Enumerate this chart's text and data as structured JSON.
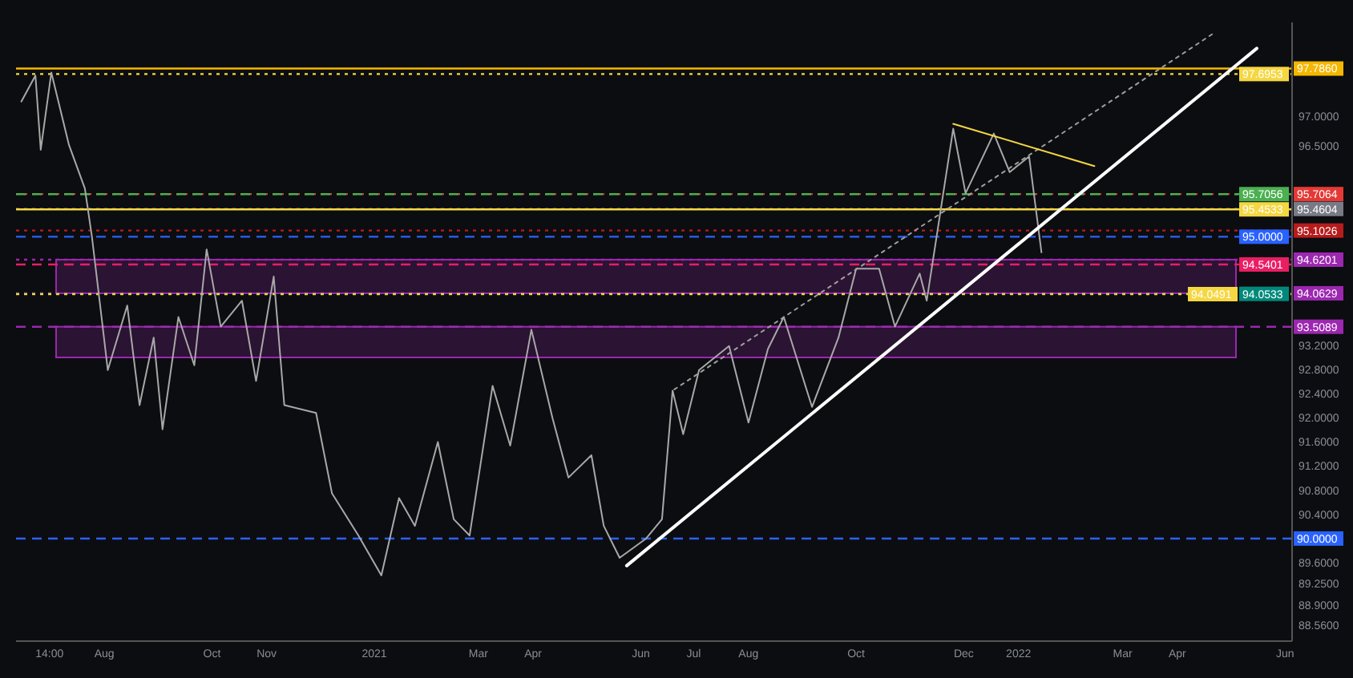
{
  "chart_data": {
    "type": "line",
    "xlim": [
      "2020-06-12",
      "2022-06-05"
    ],
    "xticks": [
      {
        "value": "2020-07-01",
        "label": "14:00"
      },
      {
        "value": "2020-08-01",
        "label": "Aug"
      },
      {
        "value": "2020-10-01",
        "label": "Oct"
      },
      {
        "value": "2020-11-01",
        "label": "Nov"
      },
      {
        "value": "2021-01-01",
        "label": "2021"
      },
      {
        "value": "2021-03-01",
        "label": "Mar"
      },
      {
        "value": "2021-04-01",
        "label": "Apr"
      },
      {
        "value": "2021-06-01",
        "label": "Jun"
      },
      {
        "value": "2021-07-01",
        "label": "Jul"
      },
      {
        "value": "2021-08-01",
        "label": "Aug"
      },
      {
        "value": "2021-10-01",
        "label": "Oct"
      },
      {
        "value": "2021-12-01",
        "label": "Dec"
      },
      {
        "value": "2022-01-01",
        "label": "2022"
      },
      {
        "value": "2022-03-01",
        "label": "Mar"
      },
      {
        "value": "2022-04-01",
        "label": "Apr"
      },
      {
        "value": "2022-06-01",
        "label": "Jun"
      }
    ],
    "ylim": [
      88.3,
      98.55
    ],
    "yticks": [
      {
        "value": 97,
        "label": "97.0000"
      },
      {
        "value": 96.5,
        "label": "96.5000"
      },
      {
        "value": 93.2,
        "label": "93.2000"
      },
      {
        "value": 92.8,
        "label": "92.8000"
      },
      {
        "value": 92.4,
        "label": "92.4000"
      },
      {
        "value": 92,
        "label": "92.0000"
      },
      {
        "value": 91.6,
        "label": "91.6000"
      },
      {
        "value": 91.2,
        "label": "91.2000"
      },
      {
        "value": 90.8,
        "label": "90.8000"
      },
      {
        "value": 90.4,
        "label": "90.4000"
      },
      {
        "value": 89.6,
        "label": "89.6000"
      },
      {
        "value": 89.25,
        "label": "89.2500"
      },
      {
        "value": 88.9,
        "label": "88.9000"
      },
      {
        "value": 88.56,
        "label": "88.5600"
      }
    ],
    "grid": false,
    "series": [
      {
        "color": "#a8a8a8",
        "line_style": "solid",
        "x": [
          "2020-06-15",
          "2020-06-23",
          "2020-06-26",
          "2020-07-02",
          "2020-07-12",
          "2020-07-21",
          "2020-07-25",
          "2020-07-30",
          "2020-08-03",
          "2020-08-14",
          "2020-08-21",
          "2020-08-29",
          "2020-09-03",
          "2020-09-12",
          "2020-09-21",
          "2020-09-28",
          "2020-10-06",
          "2020-10-18",
          "2020-10-26",
          "2020-11-05",
          "2020-11-11",
          "2020-11-29",
          "2020-12-08",
          "2020-12-23",
          "2021-01-05",
          "2021-01-15",
          "2021-01-24",
          "2021-02-06",
          "2021-02-15",
          "2021-02-24",
          "2021-03-09",
          "2021-03-19",
          "2021-03-31",
          "2021-04-12",
          "2021-04-21",
          "2021-05-04",
          "2021-05-11",
          "2021-05-20",
          "2021-06-04",
          "2021-06-13",
          "2021-06-19",
          "2021-06-25",
          "2021-07-04",
          "2021-07-21",
          "2021-08-01",
          "2021-08-12",
          "2021-08-21",
          "2021-09-06",
          "2021-09-21",
          "2021-10-01",
          "2021-10-14",
          "2021-10-23",
          "2021-11-06",
          "2021-11-10",
          "2021-11-18",
          "2021-11-25",
          "2021-12-02",
          "2021-12-18",
          "2021-12-27",
          "2022-01-07",
          "2022-01-14"
        ],
        "values": [
          97.24,
          97.67,
          96.44,
          97.72,
          96.52,
          95.8,
          95.0,
          93.78,
          92.79,
          93.86,
          92.21,
          93.33,
          91.81,
          93.67,
          92.87,
          94.79,
          93.51,
          93.94,
          92.61,
          94.34,
          92.21,
          92.08,
          90.75,
          90.05,
          89.39,
          90.67,
          90.21,
          91.6,
          90.32,
          90.05,
          92.53,
          91.54,
          93.46,
          91.99,
          91.01,
          91.38,
          90.21,
          89.68,
          90.0,
          90.32,
          92.45,
          91.73,
          92.79,
          93.19,
          91.92,
          93.14,
          93.67,
          92.18,
          93.33,
          94.47,
          94.47,
          93.51,
          94.39,
          93.94,
          95.46,
          96.79,
          95.72,
          96.71,
          96.07,
          96.33,
          94.74
        ]
      },
      {
        "color": "#ffffff",
        "line_style": "solid",
        "x": [
          "2021-05-24",
          "2022-05-16"
        ],
        "values": [
          89.55,
          98.12
        ]
      },
      {
        "color": "#9e9e9e",
        "line_style": "dotted",
        "x": [
          "2021-06-20",
          "2022-04-22"
        ],
        "values": [
          92.47,
          98.38
        ]
      },
      {
        "color": "#f5d742",
        "line_style": "solid",
        "x": [
          "2021-11-25",
          "2022-02-13"
        ],
        "values": [
          96.87,
          96.17
        ]
      }
    ],
    "ref_lines": [
      {
        "axis": "y",
        "value": 97.786,
        "label": "97.7860",
        "color": "#f5b700",
        "line_style": "solid"
      },
      {
        "axis": "y",
        "value": 97.6953,
        "label": "97.6953",
        "color": "#f5d742",
        "line_style": "dotted"
      },
      {
        "axis": "y",
        "value": 95.7064,
        "label": "95.7064",
        "color": "#e53935",
        "line_style": "dotted"
      },
      {
        "axis": "y",
        "value": 95.7056,
        "label": "95.7056",
        "color": "#4caf50",
        "line_style": "dashed"
      },
      {
        "axis": "y",
        "value": 95.4604,
        "label": "95.4604",
        "color": "#787b86",
        "line_style": "dotted"
      },
      {
        "axis": "y",
        "value": 95.4533,
        "label": "95.4533",
        "color": "#f5d742",
        "line_style": "solid"
      },
      {
        "axis": "y",
        "value": 95.1026,
        "label": "95.1026",
        "color": "#b71c1c",
        "line_style": "dotted"
      },
      {
        "axis": "y",
        "value": 95.0,
        "label": "95.0000",
        "color": "#2962ff",
        "line_style": "dashed"
      },
      {
        "axis": "y",
        "value": 94.6201,
        "label": "94.6201",
        "color": "#9c27b0",
        "line_style": "dotted"
      },
      {
        "axis": "y",
        "value": 94.5401,
        "label": "94.5401",
        "color": "#e91e63",
        "line_style": "dashed"
      },
      {
        "axis": "y",
        "value": 94.0629,
        "label": "94.0629",
        "color": "#9c27b0",
        "line_style": "dotted"
      },
      {
        "axis": "y",
        "value": 94.0533,
        "label": "94.0533",
        "color": "#00897b",
        "line_style": "dotted"
      },
      {
        "axis": "y",
        "value": 94.0491,
        "label": "94.0491",
        "color": "#f5d742",
        "line_style": "dotted"
      },
      {
        "axis": "y",
        "value": 93.5089,
        "label": "93.5089",
        "color": "#9c27b0",
        "line_style": "dashed"
      },
      {
        "axis": "y",
        "value": 90.0,
        "label": "90.0000",
        "color": "#2962ff",
        "line_style": "dashed"
      }
    ],
    "bands": [
      {
        "axis": "y",
        "from": 94.0629,
        "to": 94.6201,
        "color": "#9c27b0"
      },
      {
        "axis": "y",
        "from": 93.0,
        "to": 93.5089,
        "color": "#9c27b0"
      }
    ]
  }
}
